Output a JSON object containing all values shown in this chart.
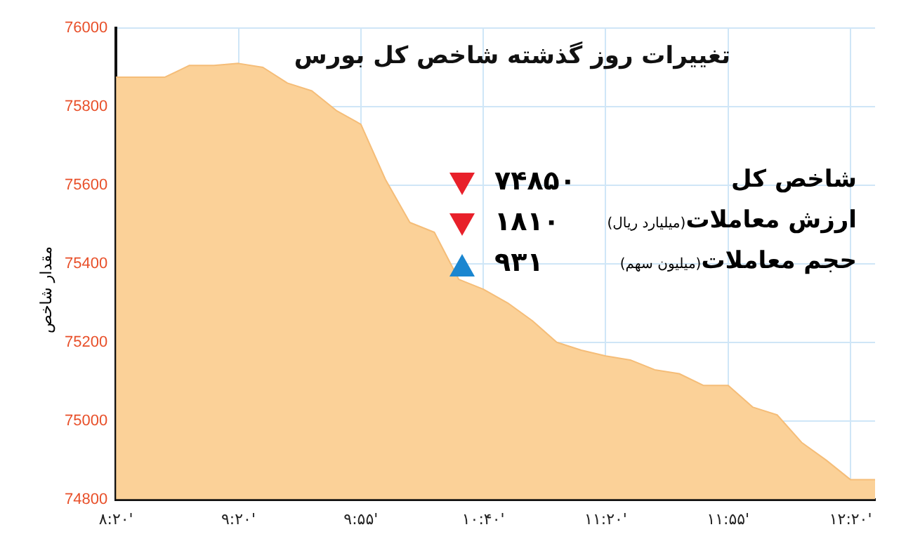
{
  "chart_data": {
    "type": "area",
    "title": "تغییرات روز گذشته شاخص کل بورس",
    "ylabel": "مقدار شاخص",
    "categories": [
      "۸:۲۰'",
      null,
      null,
      null,
      null,
      "۹:۲۰'",
      null,
      null,
      null,
      null,
      "۹:۵۵'",
      null,
      null,
      null,
      null,
      "۱۰:۴۰'",
      null,
      null,
      null,
      null,
      "۱۱:۲۰'",
      null,
      null,
      null,
      null,
      "۱۱:۵۵'",
      null,
      null,
      null,
      null,
      "۱۲:۲۰'",
      null
    ],
    "values": [
      75875,
      75875,
      75875,
      75905,
      75905,
      75910,
      75900,
      75860,
      75840,
      75790,
      75755,
      75615,
      75505,
      75480,
      75360,
      75335,
      75300,
      75255,
      75200,
      75180,
      75165,
      75155,
      75130,
      75120,
      75090,
      75090,
      75035,
      75015,
      74945,
      74900,
      74850,
      74850
    ],
    "color": "#fbd198",
    "ylim": [
      74800,
      76000
    ],
    "yticks": [
      74800,
      75000,
      75200,
      75400,
      75600,
      75800,
      76000
    ],
    "grid": true,
    "annotations": [
      "شاخص کل",
      "۷۴۸۵۰",
      "ارزش معاملات",
      "(میلیارد ریال)",
      "۱۸۱۰",
      "حجم معاملات",
      "(میلیون سهم)",
      "۹۳۱"
    ]
  }
}
